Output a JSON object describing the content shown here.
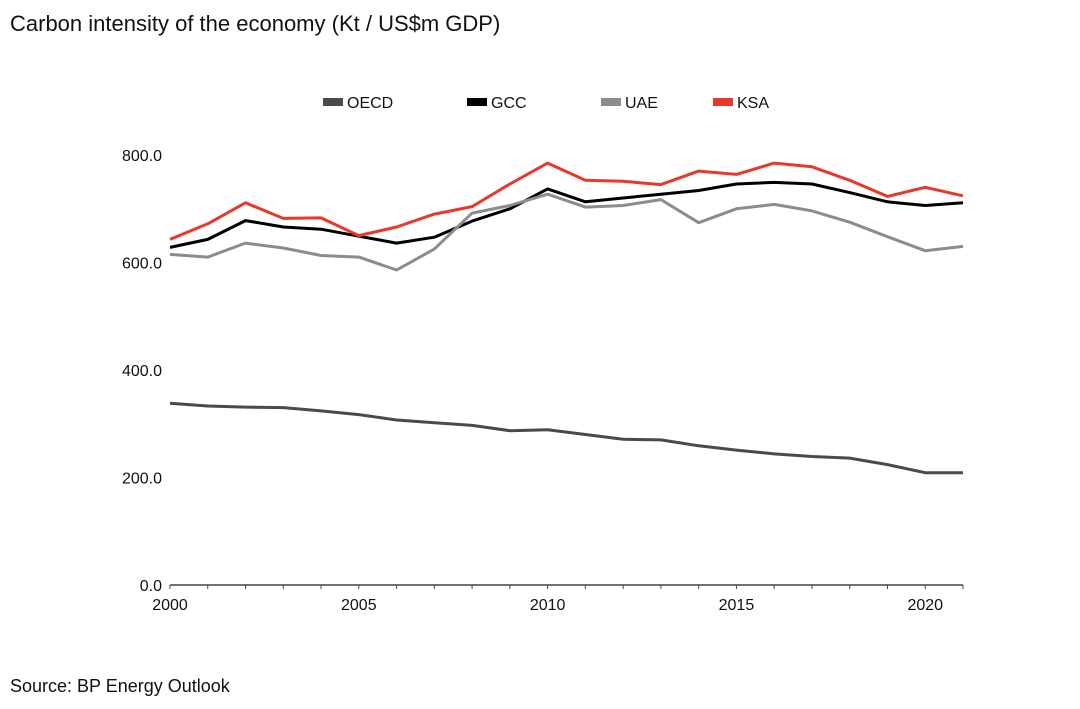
{
  "chart_data": {
    "type": "line",
    "title": "Carbon intensity of the economy (Kt / US$m GDP)",
    "source": "Source: BP Energy Outlook",
    "xlabel": "",
    "ylabel": "",
    "x": [
      2000,
      2001,
      2002,
      2003,
      2004,
      2005,
      2006,
      2007,
      2008,
      2009,
      2010,
      2011,
      2012,
      2013,
      2014,
      2015,
      2016,
      2017,
      2018,
      2019,
      2020,
      2021
    ],
    "xticks": [
      2000,
      2005,
      2010,
      2015,
      2020
    ],
    "xlim": [
      2000,
      2021
    ],
    "ylim": [
      0,
      800
    ],
    "yticks": [
      0,
      200,
      400,
      600,
      800
    ],
    "ytick_labels": [
      "0.0",
      "200.0",
      "400.0",
      "600.0",
      "800.0"
    ],
    "grid": false,
    "legend_position": "top",
    "series": [
      {
        "name": "OECD",
        "color": "#4a4a4a",
        "values": [
          338,
          333,
          331,
          330,
          324,
          317,
          307,
          302,
          297,
          287,
          289,
          280,
          271,
          270,
          259,
          251,
          244,
          239,
          236,
          224,
          209,
          209
        ]
      },
      {
        "name": "GCC",
        "color": "#000000",
        "values": [
          628,
          643,
          678,
          666,
          662,
          649,
          636,
          647,
          677,
          700,
          737,
          713,
          720,
          727,
          734,
          746,
          749,
          746,
          730,
          713,
          706,
          711
        ]
      },
      {
        "name": "UAE",
        "color": "#8c8c8c",
        "values": [
          615,
          610,
          636,
          627,
          613,
          610,
          586,
          625,
          692,
          706,
          727,
          703,
          706,
          717,
          674,
          700,
          708,
          696,
          675,
          648,
          622,
          630
        ]
      },
      {
        "name": "KSA",
        "color": "#e8382a",
        "values": [
          643,
          672,
          711,
          682,
          683,
          650,
          666,
          690,
          704,
          746,
          785,
          753,
          751,
          745,
          770,
          764,
          785,
          778,
          753,
          723,
          740,
          724
        ]
      }
    ]
  }
}
